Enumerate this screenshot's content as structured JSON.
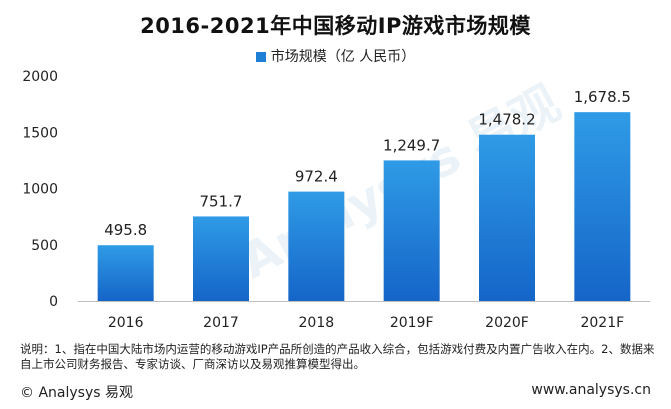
{
  "chart_data": {
    "type": "bar",
    "title": "2016-2021年中国移动IP游戏市场规模",
    "categories": [
      "2016",
      "2017",
      "2018",
      "2019F",
      "2020F",
      "2021F"
    ],
    "series": [
      {
        "name": "市场规模（亿 人民币）",
        "values": [
          495.8,
          751.7,
          972.4,
          1249.7,
          1478.2,
          1678.5
        ]
      }
    ],
    "data_labels": [
      "495.8",
      "751.7",
      "972.4",
      "1,249.7",
      "1,478.2",
      "1,678.5"
    ],
    "yticks": [
      0,
      500,
      1000,
      1500,
      2000
    ],
    "ylim": [
      0,
      2000
    ],
    "xlabel": "",
    "ylabel": "",
    "legend_position": "top-center"
  },
  "colors": {
    "bar_top": "#2f9be6",
    "bar_bottom": "#1565c8",
    "legend": "#1e7fd6"
  },
  "watermark": "Analysys 易观",
  "note": "说明：1、指在中国大陆市场内运营的移动游戏IP产品所创造的产品收入综合，包括游戏付费及内置广告收入在内。2、数据来自上市公司财务报告、专家访谈、厂商深访以及易观推算模型得出。",
  "footer": {
    "brand": "© Analysys 易观",
    "url": "www.analysys.cn"
  }
}
